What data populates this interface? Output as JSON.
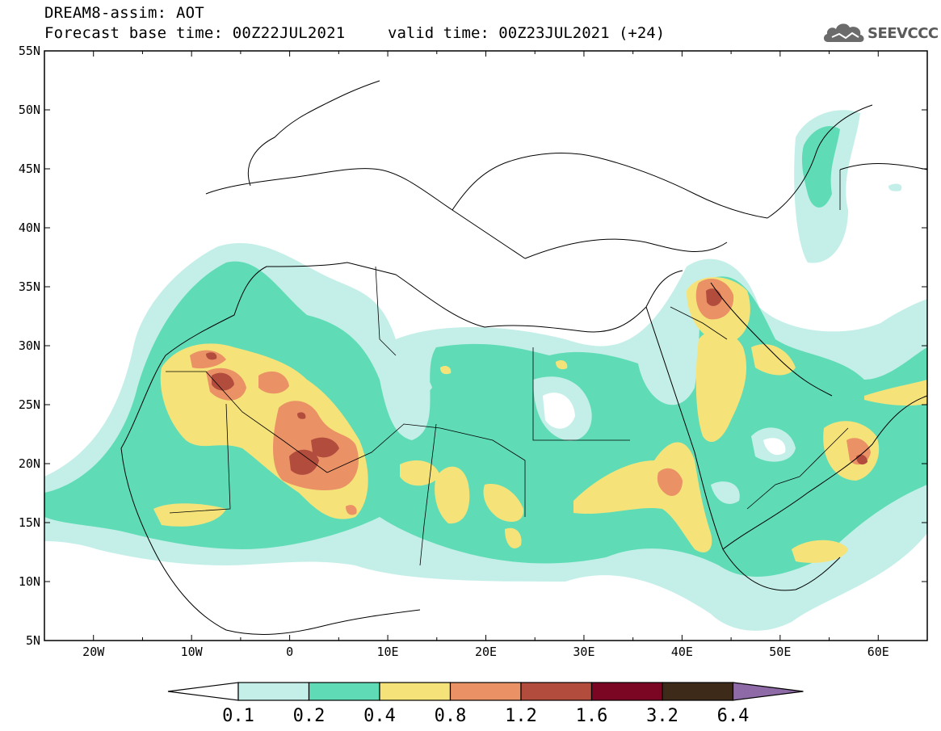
{
  "header": {
    "title": "DREAM8-assim: AOT",
    "base_time": "Forecast base time: 00Z22JUL2021",
    "valid_time": "valid time: 00Z23JUL2021 (+24)"
  },
  "logo": {
    "text": "SEEVCCC",
    "color": "#6b6b6b"
  },
  "map": {
    "lon_range": [
      -25,
      65
    ],
    "lat_range": [
      5,
      55
    ],
    "lat_labels": [
      "5N",
      "10N",
      "15N",
      "20N",
      "25N",
      "30N",
      "35N",
      "40N",
      "45N",
      "50N",
      "55N"
    ],
    "lon_labels": [
      "20W",
      "10W",
      "0",
      "10E",
      "20E",
      "30E",
      "40E",
      "50E",
      "60E"
    ]
  },
  "colorbar": {
    "labels": [
      "0.1",
      "0.2",
      "0.4",
      "0.8",
      "1.2",
      "1.6",
      "3.2",
      "6.4"
    ],
    "colors": [
      "#ffffff",
      "#c4efe8",
      "#5fdcb6",
      "#f5e37a",
      "#ea9166",
      "#b24d3e",
      "#7b0624",
      "#3d2a18",
      "#8e6aa6"
    ]
  }
}
